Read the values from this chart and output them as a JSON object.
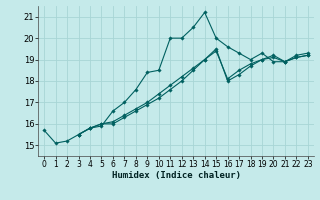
{
  "xlabel": "Humidex (Indice chaleur)",
  "background_color": "#c5eaea",
  "grid_color": "#a8d5d5",
  "line_color": "#006060",
  "xlim": [
    -0.5,
    23.5
  ],
  "ylim": [
    14.5,
    21.5
  ],
  "yticks": [
    15,
    16,
    17,
    18,
    19,
    20,
    21
  ],
  "xticks": [
    0,
    1,
    2,
    3,
    4,
    5,
    6,
    7,
    8,
    9,
    10,
    11,
    12,
    13,
    14,
    15,
    16,
    17,
    18,
    19,
    20,
    21,
    22,
    23
  ],
  "series1": {
    "x": [
      0,
      1,
      2,
      3,
      4,
      5,
      6,
      7,
      8,
      9,
      10,
      11,
      12,
      13,
      14,
      15,
      16,
      17,
      18,
      19,
      20,
      21,
      22,
      23
    ],
    "y": [
      15.7,
      15.1,
      15.2,
      15.5,
      15.8,
      15.9,
      16.6,
      17.0,
      17.6,
      18.4,
      18.5,
      20.0,
      20.0,
      20.5,
      21.2,
      20.0,
      19.6,
      19.3,
      19.0,
      19.3,
      18.9,
      18.9,
      19.2,
      19.3
    ]
  },
  "series2": {
    "x": [
      3,
      4,
      5,
      6,
      7,
      8,
      9,
      10,
      11,
      12,
      13,
      14,
      15,
      16,
      17,
      18,
      19,
      20,
      21,
      22,
      23
    ],
    "y": [
      15.5,
      15.8,
      16.0,
      16.0,
      16.3,
      16.6,
      16.9,
      17.2,
      17.6,
      18.0,
      18.5,
      19.0,
      19.5,
      18.0,
      18.3,
      18.7,
      19.0,
      19.1,
      18.9,
      19.1,
      19.2
    ]
  },
  "series3": {
    "x": [
      3,
      4,
      5,
      6,
      7,
      8,
      9,
      10,
      11,
      12,
      13,
      14,
      15,
      16,
      17,
      18,
      19,
      20,
      21,
      22,
      23
    ],
    "y": [
      15.5,
      15.8,
      16.0,
      16.1,
      16.4,
      16.7,
      17.0,
      17.4,
      17.8,
      18.2,
      18.6,
      19.0,
      19.4,
      18.1,
      18.5,
      18.8,
      19.0,
      19.2,
      18.9,
      19.1,
      19.2
    ]
  }
}
